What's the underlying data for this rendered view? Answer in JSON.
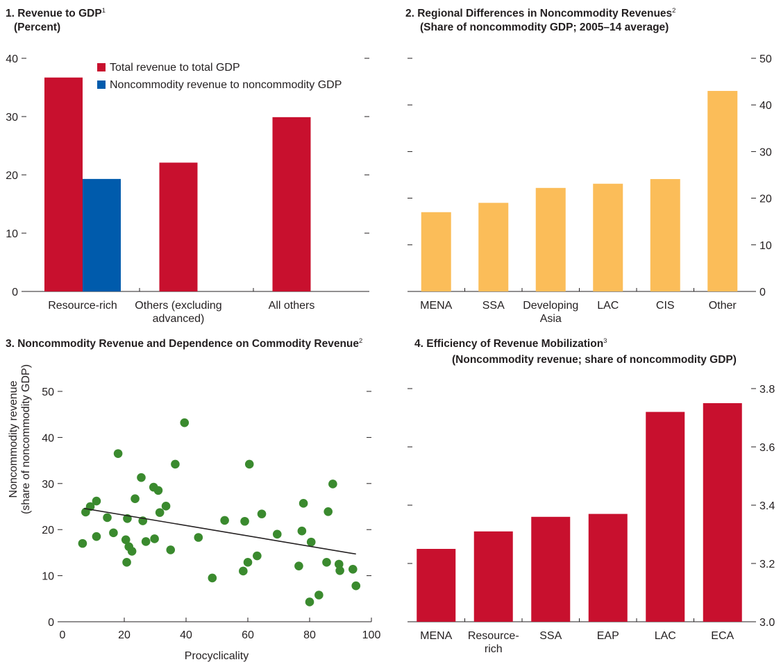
{
  "chart_data": [
    {
      "type": "bar",
      "title": "1. Revenue to GDP",
      "title_footnote": "1",
      "subtitle": "(Percent)",
      "categories": [
        "Resource-rich",
        "Others (excluding advanced)",
        "All others"
      ],
      "category_label_lines": [
        [
          "Resource-rich"
        ],
        [
          "Others (excluding",
          "advanced)"
        ],
        [
          "All others"
        ]
      ],
      "series": [
        {
          "name": "Total revenue to total GDP",
          "color": "#c8102e",
          "values": [
            36.7,
            22.1,
            29.9
          ]
        },
        {
          "name": "Noncommodity revenue to noncommodity GDP",
          "color": "#005bac",
          "values": [
            19.3,
            null,
            null
          ]
        }
      ],
      "yticks": [
        0,
        10,
        20,
        30,
        40
      ],
      "ylim": [
        0,
        40
      ],
      "legend_position": "top-center",
      "grid": false
    },
    {
      "type": "bar",
      "title": "2. Regional Differences in Noncommodity Revenues",
      "title_footnote": "2",
      "subtitle": "(Share of noncommodity GDP; 2005–14 average)",
      "categories": [
        "MENA",
        "SSA",
        "Developing Asia",
        "LAC",
        "CIS",
        "Other"
      ],
      "category_label_lines": [
        [
          "MENA"
        ],
        [
          "SSA"
        ],
        [
          "Developing",
          "Asia"
        ],
        [
          "LAC"
        ],
        [
          "CIS"
        ],
        [
          "Other"
        ]
      ],
      "values": [
        17.0,
        19.0,
        22.2,
        23.1,
        24.1,
        43.0
      ],
      "color": "#fbbd59",
      "yticks": [
        0,
        10,
        20,
        30,
        40,
        50
      ],
      "ylim": [
        0,
        50
      ],
      "yaxis_side": "right",
      "grid": false
    },
    {
      "type": "scatter",
      "title": "3. Noncommodity Revenue and Dependence on Commodity Revenue",
      "title_footnote": "2",
      "xlabel": "Procyclicality",
      "ylabel": [
        "Noncommodity revenue",
        "(share of noncommodity GDP)"
      ],
      "xlim": [
        0,
        100
      ],
      "ylim": [
        0,
        50
      ],
      "xticks": [
        0,
        20,
        40,
        60,
        80,
        100
      ],
      "yticks": [
        0,
        10,
        20,
        30,
        40,
        50
      ],
      "point_color": "#3a8a2e",
      "points": [
        [
          6.5,
          17.0
        ],
        [
          7.5,
          23.8
        ],
        [
          9.0,
          25.0
        ],
        [
          11.0,
          26.2
        ],
        [
          11.0,
          18.5
        ],
        [
          14.5,
          22.6
        ],
        [
          16.5,
          19.3
        ],
        [
          18.0,
          36.5
        ],
        [
          20.5,
          17.8
        ],
        [
          20.8,
          12.9
        ],
        [
          21.0,
          22.4
        ],
        [
          21.5,
          16.3
        ],
        [
          22.5,
          15.3
        ],
        [
          23.5,
          26.7
        ],
        [
          25.5,
          31.3
        ],
        [
          26.0,
          21.9
        ],
        [
          27.0,
          17.4
        ],
        [
          29.5,
          29.2
        ],
        [
          29.8,
          18.0
        ],
        [
          31.0,
          28.5
        ],
        [
          31.5,
          23.7
        ],
        [
          33.5,
          25.1
        ],
        [
          35.0,
          15.6
        ],
        [
          36.5,
          34.2
        ],
        [
          39.5,
          43.2
        ],
        [
          44.0,
          18.3
        ],
        [
          48.5,
          9.5
        ],
        [
          52.5,
          22.0
        ],
        [
          58.5,
          11.0
        ],
        [
          59.0,
          21.8
        ],
        [
          60.0,
          12.9
        ],
        [
          60.5,
          34.2
        ],
        [
          63.0,
          14.3
        ],
        [
          64.5,
          23.4
        ],
        [
          69.5,
          19.0
        ],
        [
          76.5,
          12.1
        ],
        [
          77.5,
          19.7
        ],
        [
          78.0,
          25.7
        ],
        [
          80.0,
          4.3
        ],
        [
          80.5,
          17.3
        ],
        [
          83.0,
          5.8
        ],
        [
          85.5,
          12.9
        ],
        [
          86.0,
          23.9
        ],
        [
          87.5,
          29.9
        ],
        [
          89.5,
          12.5
        ],
        [
          89.8,
          11.1
        ],
        [
          94.0,
          11.4
        ],
        [
          95.0,
          7.8
        ]
      ],
      "trendline": {
        "x": [
          7,
          95
        ],
        "y": [
          24.6,
          14.7
        ],
        "color": "#231f20"
      },
      "grid": false
    },
    {
      "type": "bar",
      "title": "4. Efficiency of Revenue Mobilization",
      "title_footnote": "3",
      "subtitle": "(Noncommodity revenue; share of noncommodity GDP)",
      "categories": [
        "MENA",
        "Resource-rich",
        "SSA",
        "EAP",
        "LAC",
        "ECA"
      ],
      "category_label_lines": [
        [
          "MENA"
        ],
        [
          "Resource-",
          "rich"
        ],
        [
          "SSA"
        ],
        [
          "EAP"
        ],
        [
          "LAC"
        ],
        [
          "ECA"
        ]
      ],
      "values": [
        3.25,
        3.31,
        3.36,
        3.37,
        3.72,
        3.75
      ],
      "color": "#c8102e",
      "yticks": [
        3.0,
        3.2,
        3.4,
        3.6,
        3.8
      ],
      "ytick_labels": [
        "3.0",
        "3.2",
        "3.4",
        "3.6",
        "3.8"
      ],
      "ylim": [
        3.0,
        3.8
      ],
      "yaxis_side": "right",
      "grid": false
    }
  ]
}
